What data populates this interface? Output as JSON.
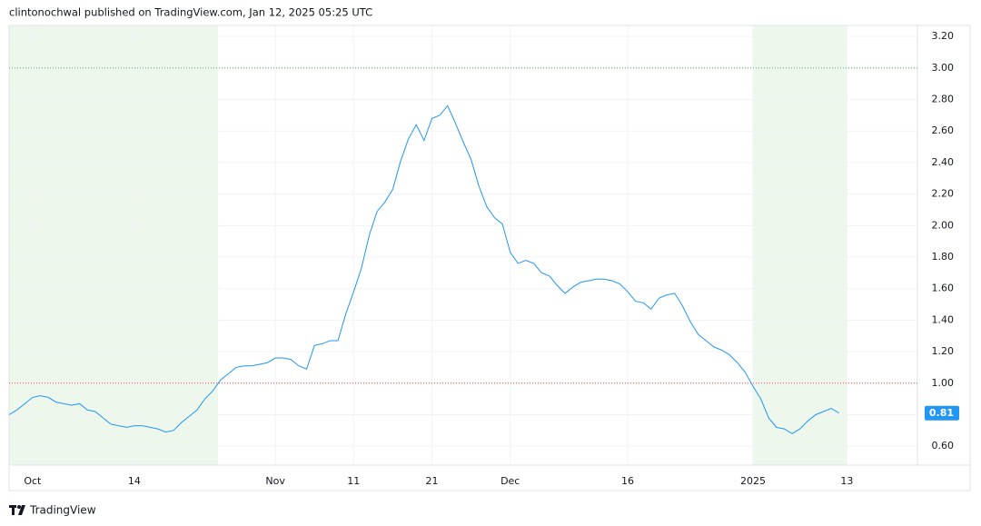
{
  "header": "clintonochwal published on TradingView.com, Jan 12, 2025 05:25 UTC",
  "brand": "TradingView",
  "chart_data": {
    "type": "line",
    "color": "#2196f3",
    "values": [
      0.8,
      0.83,
      0.87,
      0.91,
      0.92,
      0.91,
      0.88,
      0.87,
      0.86,
      0.87,
      0.83,
      0.82,
      0.78,
      0.74,
      0.73,
      0.72,
      0.73,
      0.73,
      0.72,
      0.71,
      0.69,
      0.7,
      0.75,
      0.79,
      0.83,
      0.9,
      0.95,
      1.02,
      1.06,
      1.1,
      1.11,
      1.11,
      1.12,
      1.13,
      1.16,
      1.16,
      1.15,
      1.11,
      1.09,
      1.24,
      1.25,
      1.27,
      1.27,
      1.44,
      1.58,
      1.73,
      1.94,
      2.09,
      2.15,
      2.23,
      2.41,
      2.55,
      2.64,
      2.54,
      2.68,
      2.7,
      2.76,
      2.65,
      2.53,
      2.42,
      2.25,
      2.12,
      2.05,
      2.01,
      1.83,
      1.76,
      1.78,
      1.76,
      1.7,
      1.68,
      1.62,
      1.57,
      1.61,
      1.64,
      1.65,
      1.66,
      1.66,
      1.65,
      1.63,
      1.58,
      1.52,
      1.51,
      1.47,
      1.54,
      1.56,
      1.57,
      1.49,
      1.39,
      1.31,
      1.27,
      1.23,
      1.21,
      1.18,
      1.13,
      1.07,
      0.98,
      0.9,
      0.78,
      0.72,
      0.71,
      0.68,
      0.71,
      0.76,
      0.8,
      0.82,
      0.84,
      0.81
    ],
    "xlim": [
      0,
      116
    ],
    "xticks": [
      {
        "value": 3,
        "label": "Oct"
      },
      {
        "value": 16,
        "label": "14"
      },
      {
        "value": 34,
        "label": "Nov"
      },
      {
        "value": 44,
        "label": "11"
      },
      {
        "value": 54,
        "label": "21"
      },
      {
        "value": 64,
        "label": "Dec"
      },
      {
        "value": 79,
        "label": "16"
      },
      {
        "value": 95,
        "label": "2025"
      },
      {
        "value": 107,
        "label": "13"
      }
    ],
    "ylim": [
      0.48,
      3.27
    ],
    "yticks": [
      {
        "value": 0.6,
        "label": "0.60"
      },
      {
        "value": 0.8,
        "label": "0.80"
      },
      {
        "value": 1.0,
        "label": "1.00"
      },
      {
        "value": 1.2,
        "label": "1.20"
      },
      {
        "value": 1.4,
        "label": "1.40"
      },
      {
        "value": 1.6,
        "label": "1.60"
      },
      {
        "value": 1.8,
        "label": "1.80"
      },
      {
        "value": 2.0,
        "label": "2.00"
      },
      {
        "value": 2.2,
        "label": "2.20"
      },
      {
        "value": 2.4,
        "label": "2.40"
      },
      {
        "value": 2.6,
        "label": "2.60"
      },
      {
        "value": 2.8,
        "label": "2.80"
      },
      {
        "value": 3.0,
        "label": "3.00"
      },
      {
        "value": 3.2,
        "label": "3.20"
      }
    ],
    "grid": true,
    "highlight_ranges": [
      {
        "from": 0,
        "to": 26.7,
        "color": "#eef7ec"
      },
      {
        "from": 95,
        "to": 107,
        "color": "#eef7ec"
      }
    ],
    "reference_lines": [
      {
        "value": 3.0,
        "color": "#4caf50"
      },
      {
        "value": 1.0,
        "color": "#f44336"
      }
    ]
  }
}
